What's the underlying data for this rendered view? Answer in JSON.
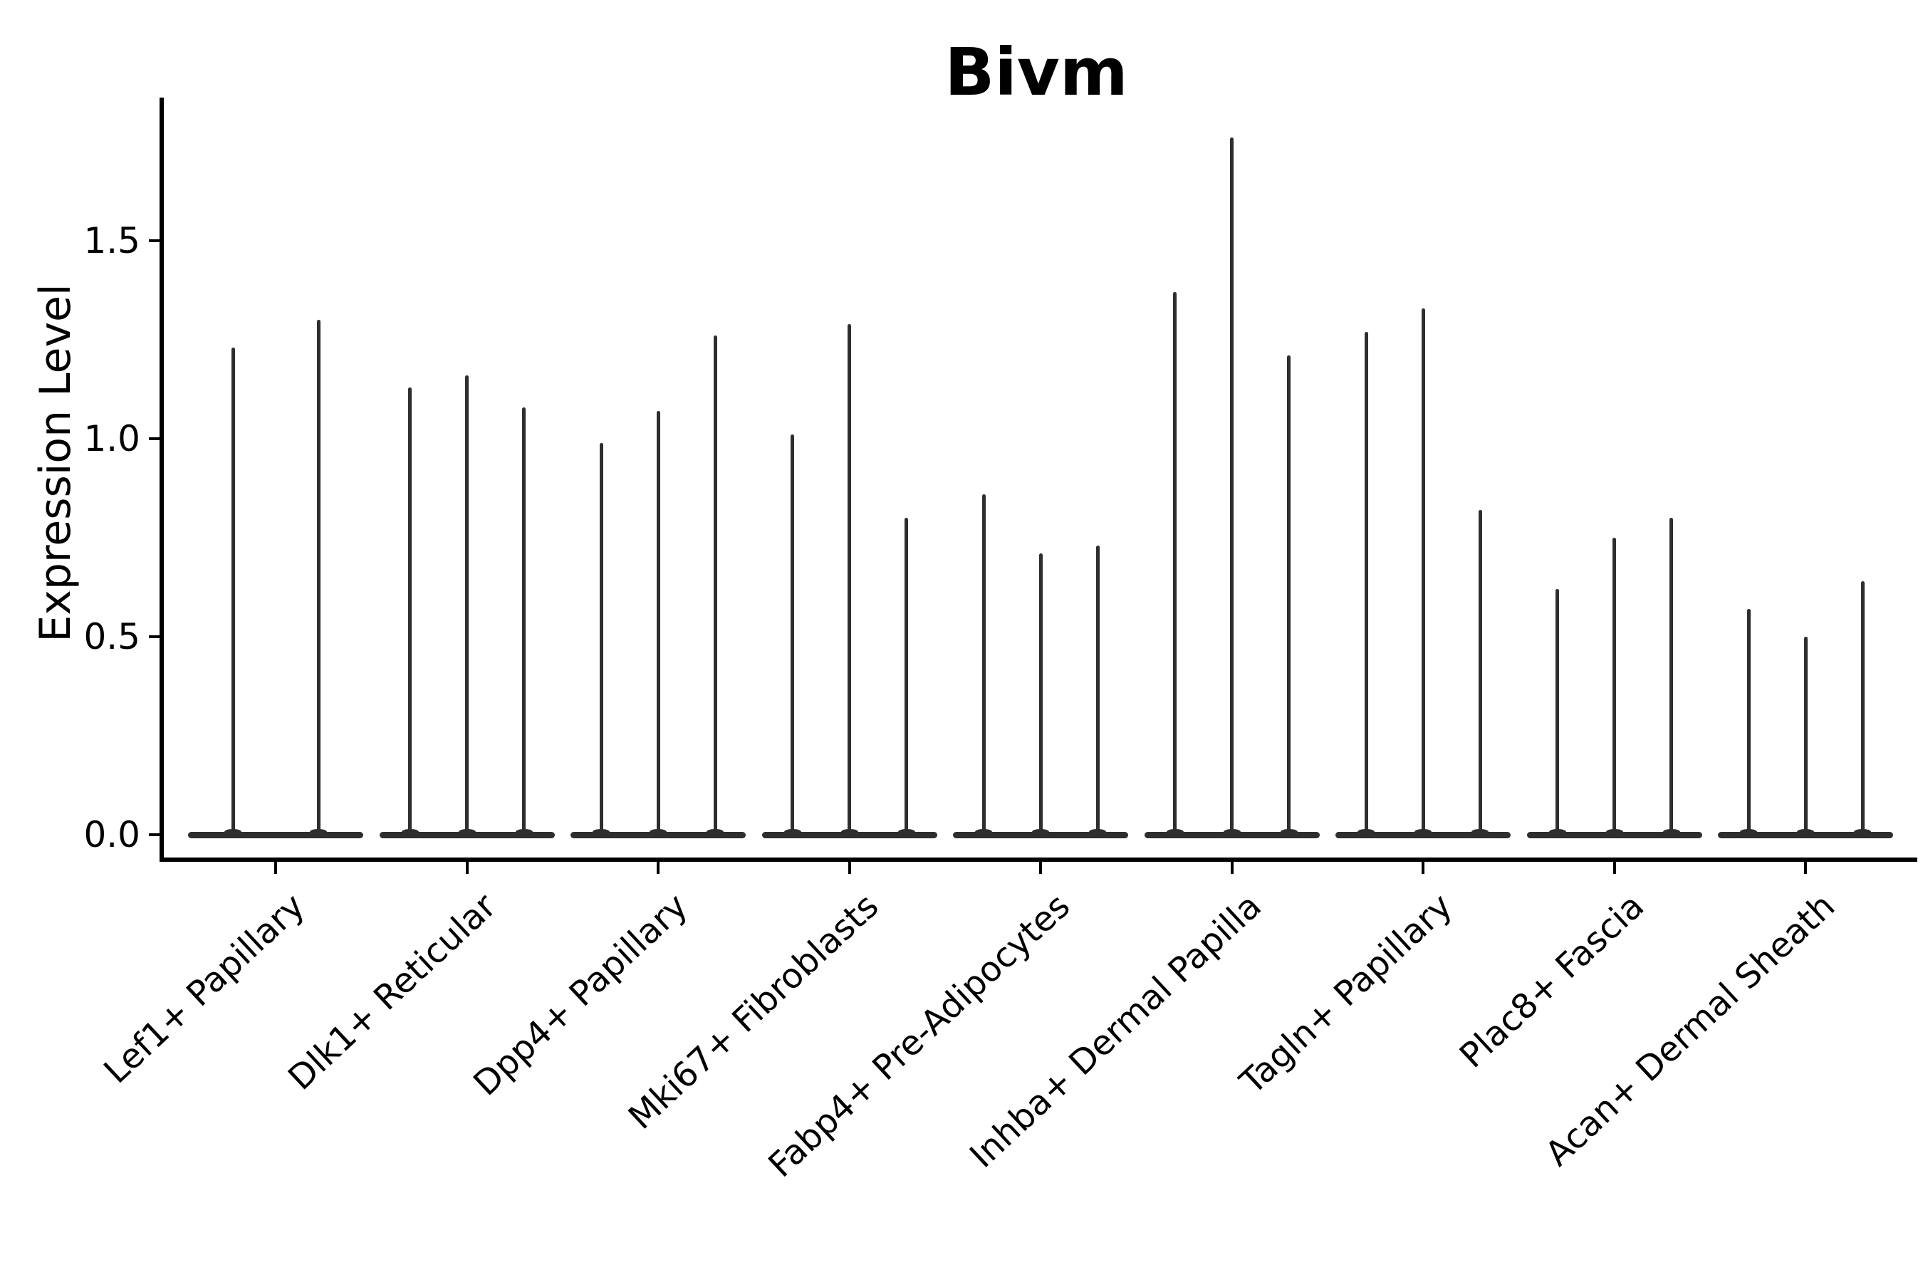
{
  "chart_data": {
    "type": "violin",
    "title": "Bivm",
    "ylabel": "Expression Level",
    "xlabel": "",
    "legend": "none",
    "grid": false,
    "background_color": "#ffffff",
    "violin_color": "#2e2e2e",
    "axis_color": "#000000",
    "y_ticks": [
      {
        "value": 0.0,
        "label": "0.0"
      },
      {
        "value": 0.5,
        "label": "0.5"
      },
      {
        "value": 1.0,
        "label": "1.0"
      },
      {
        "value": 1.5,
        "label": "1.5"
      }
    ],
    "ylim": [
      -0.07,
      1.86
    ],
    "baseline_value": 0.0,
    "categories": [
      "Lef1+ Papillary",
      "Dlk1+ Reticular",
      "Dpp4+ Papillary",
      "Mki67+ Fibroblasts",
      "Fabp4+ Pre-Adipocytes",
      "Inhba+ Dermal Papilla",
      "Tagln+ Papillary",
      "Plac8+ Fascia",
      "Acan+ Dermal Sheath"
    ],
    "violins": [
      {
        "category": "Lef1+ Papillary",
        "spike_maxima": [
          1.23,
          1.3
        ]
      },
      {
        "category": "Dlk1+ Reticular",
        "spike_maxima": [
          1.13,
          1.16,
          1.08
        ]
      },
      {
        "category": "Dpp4+ Papillary",
        "spike_maxima": [
          0.99,
          1.07,
          1.26
        ]
      },
      {
        "category": "Mki67+ Fibroblasts",
        "spike_maxima": [
          1.01,
          1.29,
          0.8
        ]
      },
      {
        "category": "Fabp4+ Pre-Adipocytes",
        "spike_maxima": [
          0.86,
          0.71,
          0.73
        ]
      },
      {
        "category": "Inhba+ Dermal Papilla",
        "spike_maxima": [
          1.37,
          1.76,
          1.21
        ]
      },
      {
        "category": "Tagln+ Papillary",
        "spike_maxima": [
          1.27,
          1.33,
          0.82
        ]
      },
      {
        "category": "Plac8+ Fascia",
        "spike_maxima": [
          0.62,
          0.75,
          0.8
        ]
      },
      {
        "category": "Acan+ Dermal Sheath",
        "spike_maxima": [
          0.57,
          0.5,
          0.64
        ]
      }
    ]
  }
}
